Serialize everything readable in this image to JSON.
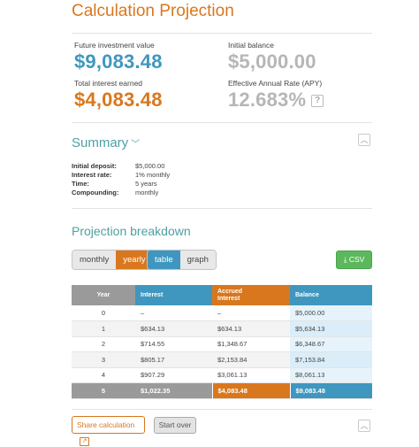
{
  "page": {
    "title": "Calculation Projection"
  },
  "stats": {
    "future_value": {
      "label": "Future investment value",
      "value": "$9,083.48"
    },
    "initial_balance": {
      "label": "Initial balance",
      "value": "$5,000.00"
    },
    "total_interest": {
      "label": "Total interest earned",
      "value": "$4,083.48"
    },
    "apy": {
      "label": "Effective Annual Rate (APY)",
      "value": "12.683%",
      "help_glyph": "?"
    }
  },
  "summary": {
    "title": "Summary",
    "chevron": "﹀",
    "collapse_glyph": "︿",
    "rows": [
      {
        "key": "Initial deposit:",
        "value": "$5,000.00"
      },
      {
        "key": "Interest rate:",
        "value": "1% monthly"
      },
      {
        "key": "Time:",
        "value": "5 years"
      },
      {
        "key": "Compounding:",
        "value": "monthly"
      }
    ]
  },
  "projection": {
    "title": "Projection breakdown",
    "period_toggle": {
      "options": [
        "monthly",
        "yearly"
      ],
      "selected": "yearly"
    },
    "view_toggle": {
      "options": [
        "table",
        "graph"
      ],
      "selected": "table"
    },
    "csv_label": "CSV",
    "csv_glyph": "⤓",
    "headers": {
      "year": "Year",
      "interest": "Interest",
      "accrued_1": "Accrued",
      "accrued_2": "Interest",
      "balance": "Balance"
    },
    "rows": [
      {
        "year": "0",
        "interest": "–",
        "accrued": "–",
        "balance": "$5,000.00"
      },
      {
        "year": "1",
        "interest": "$634.13",
        "accrued": "$634.13",
        "balance": "$5,634.13"
      },
      {
        "year": "2",
        "interest": "$714.55",
        "accrued": "$1,348.67",
        "balance": "$6,348.67"
      },
      {
        "year": "3",
        "interest": "$805.17",
        "accrued": "$2,153.84",
        "balance": "$7,153.84"
      },
      {
        "year": "4",
        "interest": "$907.29",
        "accrued": "$3,061.13",
        "balance": "$8,061.13"
      }
    ],
    "total": {
      "year": "5",
      "interest": "$1,022.35",
      "accrued": "$4,083.48",
      "balance": "$9,083.48"
    }
  },
  "footer": {
    "share_label": "Share calculation",
    "share_glyph": "↗",
    "start_over_label": "Start over",
    "collapse_glyph": "︿"
  },
  "colors": {
    "accent_orange": "#d9771e",
    "accent_blue": "#3f97bf",
    "teal": "#4f9fa0",
    "csv_green": "#5cb85c"
  }
}
